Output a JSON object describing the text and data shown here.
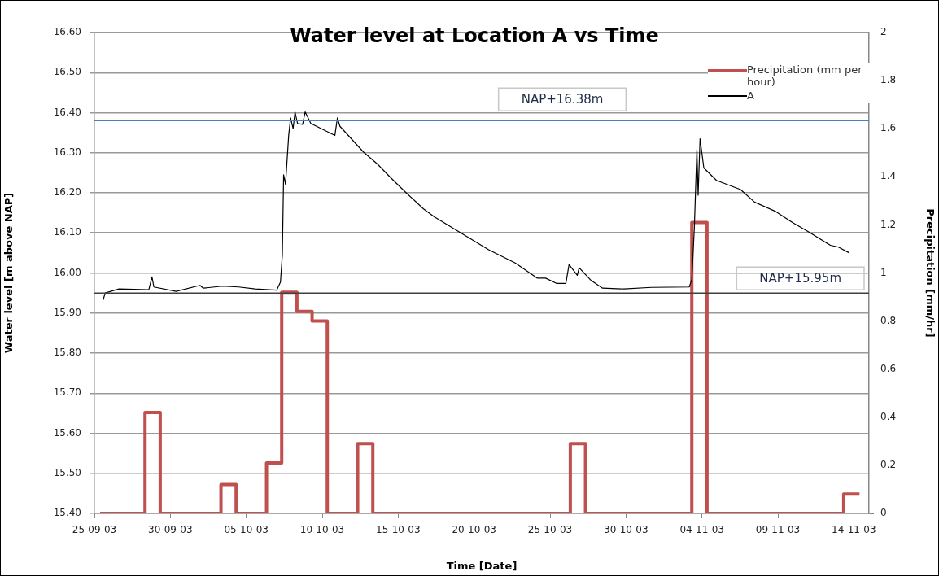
{
  "chart_data": {
    "type": "line",
    "title": "Water level at Location A vs Time",
    "xlabel": "Time [Date]",
    "ylabel": "Water level [m above NAP]",
    "y2label": "Precipitation [mm/hr]",
    "xlim": [
      "--09-25",
      "--11-15"
    ],
    "xticks": [
      {
        "value": "--09-25",
        "label": "25-09-03"
      },
      {
        "value": "--09-30",
        "label": "30-09-03"
      },
      {
        "value": "--10-05",
        "label": "05-10-03"
      },
      {
        "value": "--10-10",
        "label": "10-10-03"
      },
      {
        "value": "--10-15",
        "label": "15-10-03"
      },
      {
        "value": "--10-20",
        "label": "20-10-03"
      },
      {
        "value": "--10-25",
        "label": "25-10-03"
      },
      {
        "value": "--10-30",
        "label": "30-10-03"
      },
      {
        "value": "--11-04",
        "label": "04-11-03"
      },
      {
        "value": "--11-09",
        "label": "09-11-03"
      },
      {
        "value": "--11-14",
        "label": "14-11-03"
      }
    ],
    "ylim": [
      15.4,
      16.6
    ],
    "yticks": [
      {
        "value": 15.4,
        "label": "15.40"
      },
      {
        "value": 15.5,
        "label": "15.50"
      },
      {
        "value": 15.6,
        "label": "15.60"
      },
      {
        "value": 15.7,
        "label": "15.70"
      },
      {
        "value": 15.8,
        "label": "15.80"
      },
      {
        "value": 15.9,
        "label": "15.90"
      },
      {
        "value": 16.0,
        "label": "16.00"
      },
      {
        "value": 16.1,
        "label": "16.10"
      },
      {
        "value": 16.2,
        "label": "16.20"
      },
      {
        "value": 16.3,
        "label": "16.30"
      },
      {
        "value": 16.4,
        "label": "16.40"
      },
      {
        "value": 16.5,
        "label": "16.50"
      },
      {
        "value": 16.6,
        "label": "16.60"
      }
    ],
    "y2lim": [
      0,
      2
    ],
    "y2ticks": [
      0,
      0.2,
      0.4,
      0.6,
      0.8,
      1,
      1.2,
      1.4,
      1.6,
      1.8,
      2
    ],
    "grid": "y",
    "legend": "top right",
    "marker": "none",
    "line_style": "solid",
    "ref_lines": [
      {
        "axis": "y",
        "value": 16.38,
        "label": "NAP+16.38m",
        "color": "#4a7ebb"
      },
      {
        "axis": "y",
        "value": 15.95,
        "label": "NAP+15.95m",
        "color": "#404040"
      }
    ],
    "series": [
      {
        "name": "Precipitation (mm per hour)",
        "type": "step",
        "axis": "y2",
        "color": "#c0504d",
        "x": [
          "--09-25T09:00",
          "--09-28T08:00",
          "--09-29T08:00",
          "--10-03T08:00",
          "--10-04T08:00",
          "--10-06T08:00",
          "--10-07T08:00",
          "--10-08T08:00",
          "--10-09T08:00",
          "--10-10T08:00",
          "--10-12T08:00",
          "--10-13T08:00",
          "--10-26T08:00",
          "--10-27T08:00",
          "--11-03T08:00",
          "--11-04T08:00",
          "--11-13T08:00",
          "--11-14T09:00"
        ],
        "values": [
          0,
          0.42,
          0,
          0.12,
          0,
          0.21,
          0.92,
          0.84,
          0.8,
          0,
          0.29,
          0,
          0.29,
          0,
          1.21,
          0,
          0.08,
          0.08
        ]
      },
      {
        "name": "A",
        "type": "line",
        "color": "#000000",
        "x": [
          "--09-25T14:00",
          "--09-25T17:00",
          "--09-26T15:00",
          "--09-28T14:00",
          "--09-28T19:00",
          "--09-28T22:00",
          "--09-30T09:00",
          "--10-01T23:00",
          "--10-02T04:00",
          "--10-03T10:00",
          "--10-04T12:00",
          "--10-05T14:00",
          "--10-07T00:00",
          "--10-07T06:00",
          "--10-07T09:00",
          "--10-07T11:00",
          "--10-07T14:00",
          "--10-07T19:00",
          "--10-07T22:00",
          "--10-08T02:00",
          "--10-08T05:00",
          "--10-08T09:00",
          "--10-08T17:00",
          "--10-08T21:00",
          "--10-09T06:00",
          "--10-10T20:00",
          "--10-11T00:00",
          "--10-11T04:00",
          "--10-12T17:00",
          "--10-13T15:00",
          "--10-14T12:00",
          "--10-15T12:00",
          "--10-16T16:00",
          "--10-17T09:00",
          "--10-19T04:00",
          "--10-20T23:00",
          "--10-22T17:00",
          "--10-24T04:00",
          "--10-24T17:00",
          "--10-25T10:00",
          "--10-26T01:00",
          "--10-26T06:00",
          "--10-26T19:00",
          "--10-26T22:00",
          "--10-27T17:00",
          "--10-28T11:00",
          "--10-29T21:00",
          "--10-31T16:00",
          "--11-03T04:00",
          "--11-03T08:00",
          "--11-03T12:00",
          "--11-03T16:00",
          "--11-03T18:00",
          "--11-03T21:00",
          "--11-04T03:00",
          "--11-04T23:00",
          "--11-06T13:00",
          "--11-07T11:00",
          "--11-08T21:00",
          "--11-09T23:00",
          "--11-11T00:00",
          "--11-12T11:00",
          "--11-12T23:00",
          "--11-13T17:00"
        ],
        "values": [
          15.933,
          15.95,
          15.96,
          15.958,
          15.99,
          15.965,
          15.954,
          15.969,
          15.962,
          15.967,
          15.965,
          15.96,
          15.957,
          15.977,
          16.045,
          16.245,
          16.221,
          16.343,
          16.387,
          16.36,
          16.402,
          16.373,
          16.371,
          16.402,
          16.373,
          16.343,
          16.387,
          16.366,
          16.302,
          16.272,
          16.238,
          16.201,
          16.16,
          16.14,
          16.099,
          16.058,
          16.025,
          15.987,
          15.987,
          15.974,
          15.974,
          16.021,
          15.994,
          16.013,
          15.981,
          15.962,
          15.96,
          15.964,
          15.965,
          15.984,
          16.113,
          16.308,
          16.194,
          16.335,
          16.262,
          16.231,
          16.208,
          16.177,
          16.153,
          16.126,
          16.103,
          16.069,
          16.065,
          16.05
        ]
      }
    ]
  }
}
